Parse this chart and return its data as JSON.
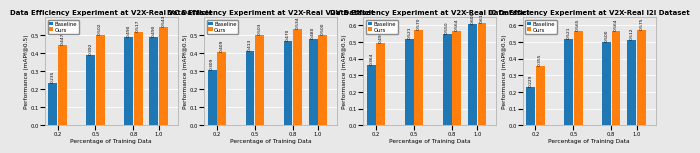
{
  "charts": [
    {
      "title": "Data Efficiency Experiment at V2X-Real VC Dataset",
      "xlabel": "Percentage of Training Data",
      "ylabel": "Performance (mAPf@0.5)",
      "x_ticks": [
        0.2,
        0.5,
        0.8,
        1.0
      ],
      "baseline": [
        0.235,
        0.392,
        0.49,
        0.49
      ],
      "ours": [
        0.447,
        0.502,
        0.517,
        0.543
      ],
      "ylim": [
        0.0,
        0.6
      ],
      "yticks": [
        0.0,
        0.1,
        0.2,
        0.3,
        0.4,
        0.5
      ],
      "baseline_labels": [
        "0.235",
        "0.392",
        "0.490",
        "0.490"
      ],
      "ours_labels": [
        "0.447",
        "0.502",
        "0.517",
        "0.543"
      ]
    },
    {
      "title": "Data Efficiency Experiment at V2X-Real V2V Dataset",
      "xlabel": "Percentage of Training Data",
      "ylabel": "Performance (mAPf@0.5)",
      "x_ticks": [
        0.2,
        0.5,
        0.8,
        1.0
      ],
      "baseline": [
        0.309,
        0.413,
        0.47,
        0.48
      ],
      "ours": [
        0.409,
        0.503,
        0.534,
        0.5
      ],
      "ylim": [
        0.0,
        0.6
      ],
      "yticks": [
        0.0,
        0.1,
        0.2,
        0.3,
        0.4,
        0.5
      ],
      "baseline_labels": [
        "0.309",
        "0.413",
        "0.470",
        "0.480"
      ],
      "ours_labels": [
        "0.409",
        "0.503",
        "0.534",
        "0.500"
      ]
    },
    {
      "title": "Data Efficiency Experiment at V2X-Real IC Dataset",
      "xlabel": "Percentage of Training Data",
      "ylabel": "Performance (mAPf@0.5)",
      "x_ticks": [
        0.2,
        0.5,
        0.8,
        1.0
      ],
      "baseline": [
        0.364,
        0.521,
        0.55,
        0.608
      ],
      "ours": [
        0.493,
        0.57,
        0.564,
        0.614
      ],
      "ylim": [
        0.0,
        0.65
      ],
      "yticks": [
        0.0,
        0.1,
        0.2,
        0.3,
        0.4,
        0.5,
        0.6
      ],
      "baseline_labels": [
        "0.364",
        "0.521",
        "0.550",
        "0.608"
      ],
      "ours_labels": [
        "0.493",
        "0.570",
        "0.564",
        "0.614"
      ]
    },
    {
      "title": "Data Efficiency Experiment at V2X-Real I2I Dataset",
      "xlabel": "Percentage of Training Data",
      "ylabel": "Performance (mAPf@0.5)",
      "x_ticks": [
        0.2,
        0.5,
        0.8,
        1.0
      ],
      "baseline": [
        0.229,
        0.521,
        0.5,
        0.512
      ],
      "ours": [
        0.355,
        0.565,
        0.564,
        0.575
      ],
      "ylim": [
        0.0,
        0.65
      ],
      "yticks": [
        0.0,
        0.1,
        0.2,
        0.3,
        0.4,
        0.5,
        0.6
      ],
      "baseline_labels": [
        "0.229",
        "0.521",
        "0.500",
        "0.512"
      ],
      "ours_labels": [
        "0.355",
        "0.565",
        "0.564",
        "0.575"
      ]
    }
  ],
  "color_baseline": "#1f77b4",
  "color_ours": "#ff7f0e",
  "legend_labels": [
    "Baseline",
    "Ours"
  ],
  "title_fontsize": 5.0,
  "label_fontsize": 4.2,
  "tick_fontsize": 3.8,
  "annot_fontsize": 3.2,
  "legend_fontsize": 3.8,
  "background_color": "#e8e8e8"
}
